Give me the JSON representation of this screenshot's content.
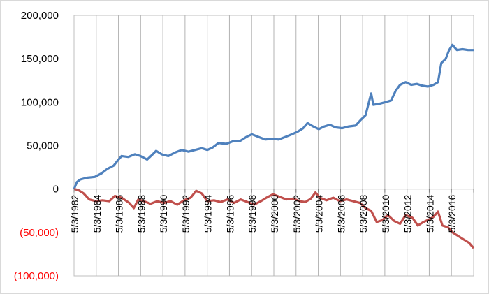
{
  "chart_data": {
    "type": "line",
    "title": "",
    "xlabel": "",
    "ylabel": "",
    "ylim": [
      -100000,
      200000
    ],
    "grid": {
      "major_vertical": true,
      "major_horizontal": false
    },
    "legend": "none",
    "x_tick_labels": [
      "5/3/1982",
      "5/3/1984",
      "5/3/1986",
      "5/3/1988",
      "5/3/1990",
      "5/3/1992",
      "5/3/1994",
      "5/3/1996",
      "5/3/1998",
      "5/3/2000",
      "5/3/2002",
      "5/3/2004",
      "5/3/2006",
      "5/3/2008",
      "5/3/2010",
      "5/3/2012",
      "5/3/2014",
      "5/3/2016"
    ],
    "y_ticks": [
      {
        "value": 200000,
        "label": "200,000",
        "color": "#000000"
      },
      {
        "value": 150000,
        "label": "150,000",
        "color": "#000000"
      },
      {
        "value": 100000,
        "label": "100,000",
        "color": "#000000"
      },
      {
        "value": 50000,
        "label": "50,000",
        "color": "#000000"
      },
      {
        "value": 0,
        "label": "0",
        "color": "#000000"
      },
      {
        "value": -50000,
        "label": "(50,000)",
        "color": "#ff0000"
      },
      {
        "value": -100000,
        "label": "(100,000)",
        "color": "#ff0000"
      }
    ],
    "x_range": [
      1982.34,
      2018.2
    ],
    "series": [
      {
        "color": "#4f81bd",
        "points": [
          [
            1982.34,
            0
          ],
          [
            1982.6,
            8000
          ],
          [
            1982.9,
            11000
          ],
          [
            1983.5,
            13000
          ],
          [
            1984.2,
            14000
          ],
          [
            1984.8,
            18000
          ],
          [
            1985.3,
            23000
          ],
          [
            1985.9,
            27000
          ],
          [
            1986.2,
            32000
          ],
          [
            1986.6,
            38000
          ],
          [
            1987.2,
            37000
          ],
          [
            1987.8,
            40000
          ],
          [
            1988.3,
            38000
          ],
          [
            1988.9,
            34000
          ],
          [
            1989.4,
            40000
          ],
          [
            1989.7,
            44000
          ],
          [
            1990.2,
            40000
          ],
          [
            1990.8,
            38000
          ],
          [
            1991.4,
            42000
          ],
          [
            1992.0,
            45000
          ],
          [
            1992.6,
            43000
          ],
          [
            1993.2,
            45000
          ],
          [
            1993.8,
            47000
          ],
          [
            1994.3,
            45000
          ],
          [
            1994.8,
            48000
          ],
          [
            1995.3,
            53000
          ],
          [
            1996.0,
            52000
          ],
          [
            1996.6,
            55000
          ],
          [
            1997.2,
            55000
          ],
          [
            1997.8,
            60000
          ],
          [
            1998.3,
            63000
          ],
          [
            1998.9,
            60000
          ],
          [
            1999.5,
            57000
          ],
          [
            2000.1,
            58000
          ],
          [
            2000.7,
            57000
          ],
          [
            2001.3,
            60000
          ],
          [
            2001.9,
            63000
          ],
          [
            2002.4,
            66000
          ],
          [
            2002.9,
            70000
          ],
          [
            2003.3,
            76000
          ],
          [
            2003.8,
            72000
          ],
          [
            2004.3,
            69000
          ],
          [
            2004.8,
            72000
          ],
          [
            2005.3,
            74000
          ],
          [
            2005.8,
            71000
          ],
          [
            2006.4,
            70000
          ],
          [
            2007.0,
            72000
          ],
          [
            2007.6,
            73000
          ],
          [
            2008.1,
            80000
          ],
          [
            2008.5,
            85000
          ],
          [
            2008.8,
            100000
          ],
          [
            2009.0,
            110000
          ],
          [
            2009.2,
            97000
          ],
          [
            2009.7,
            98000
          ],
          [
            2010.3,
            100000
          ],
          [
            2010.8,
            102000
          ],
          [
            2011.2,
            113000
          ],
          [
            2011.6,
            120000
          ],
          [
            2012.1,
            123000
          ],
          [
            2012.6,
            120000
          ],
          [
            2013.1,
            121000
          ],
          [
            2013.6,
            119000
          ],
          [
            2014.1,
            118000
          ],
          [
            2014.6,
            120000
          ],
          [
            2015.0,
            123000
          ],
          [
            2015.3,
            145000
          ],
          [
            2015.7,
            150000
          ],
          [
            2016.0,
            160000
          ],
          [
            2016.3,
            166000
          ],
          [
            2016.7,
            160000
          ],
          [
            2017.2,
            161000
          ],
          [
            2017.7,
            160000
          ],
          [
            2018.2,
            160000
          ]
        ]
      },
      {
        "color": "#c0504d",
        "points": [
          [
            1982.34,
            0
          ],
          [
            1982.7,
            -1000
          ],
          [
            1983.2,
            -5000
          ],
          [
            1983.7,
            -12000
          ],
          [
            1984.3,
            -14000
          ],
          [
            1984.9,
            -13000
          ],
          [
            1985.5,
            -14000
          ],
          [
            1986.0,
            -8000
          ],
          [
            1986.6,
            -10000
          ],
          [
            1987.3,
            -16000
          ],
          [
            1987.7,
            -22000
          ],
          [
            1988.1,
            -12000
          ],
          [
            1988.6,
            -14000
          ],
          [
            1989.2,
            -17000
          ],
          [
            1989.8,
            -14000
          ],
          [
            1990.4,
            -16000
          ],
          [
            1991.0,
            -14000
          ],
          [
            1991.6,
            -18000
          ],
          [
            1992.2,
            -13000
          ],
          [
            1992.8,
            -10000
          ],
          [
            1993.3,
            -2000
          ],
          [
            1993.8,
            -5000
          ],
          [
            1994.3,
            -14000
          ],
          [
            1994.9,
            -13000
          ],
          [
            1995.5,
            -15000
          ],
          [
            1996.1,
            -12000
          ],
          [
            1996.7,
            -16000
          ],
          [
            1997.3,
            -12000
          ],
          [
            1997.9,
            -15000
          ],
          [
            1998.5,
            -18000
          ],
          [
            1999.1,
            -14000
          ],
          [
            1999.6,
            -10000
          ],
          [
            2000.2,
            -6000
          ],
          [
            2000.8,
            -9000
          ],
          [
            2001.4,
            -12000
          ],
          [
            2002.0,
            -11000
          ],
          [
            2002.6,
            -14000
          ],
          [
            2003.1,
            -15000
          ],
          [
            2003.6,
            -11000
          ],
          [
            2004.0,
            -4000
          ],
          [
            2004.4,
            -10000
          ],
          [
            2005.0,
            -13000
          ],
          [
            2005.6,
            -10000
          ],
          [
            2006.2,
            -14000
          ],
          [
            2006.8,
            -12000
          ],
          [
            2007.4,
            -14000
          ],
          [
            2008.0,
            -16000
          ],
          [
            2008.5,
            -22000
          ],
          [
            2009.0,
            -25000
          ],
          [
            2009.5,
            -38000
          ],
          [
            2010.0,
            -36000
          ],
          [
            2010.5,
            -30000
          ],
          [
            2011.1,
            -37000
          ],
          [
            2011.6,
            -40000
          ],
          [
            2012.1,
            -30000
          ],
          [
            2012.7,
            -33000
          ],
          [
            2013.2,
            -42000
          ],
          [
            2013.7,
            -38000
          ],
          [
            2014.2,
            -35000
          ],
          [
            2014.6,
            -32000
          ],
          [
            2015.0,
            -26000
          ],
          [
            2015.4,
            -42000
          ],
          [
            2015.9,
            -44000
          ],
          [
            2016.3,
            -50000
          ],
          [
            2016.8,
            -54000
          ],
          [
            2017.3,
            -58000
          ],
          [
            2017.8,
            -62000
          ],
          [
            2018.2,
            -68000
          ]
        ]
      }
    ]
  }
}
